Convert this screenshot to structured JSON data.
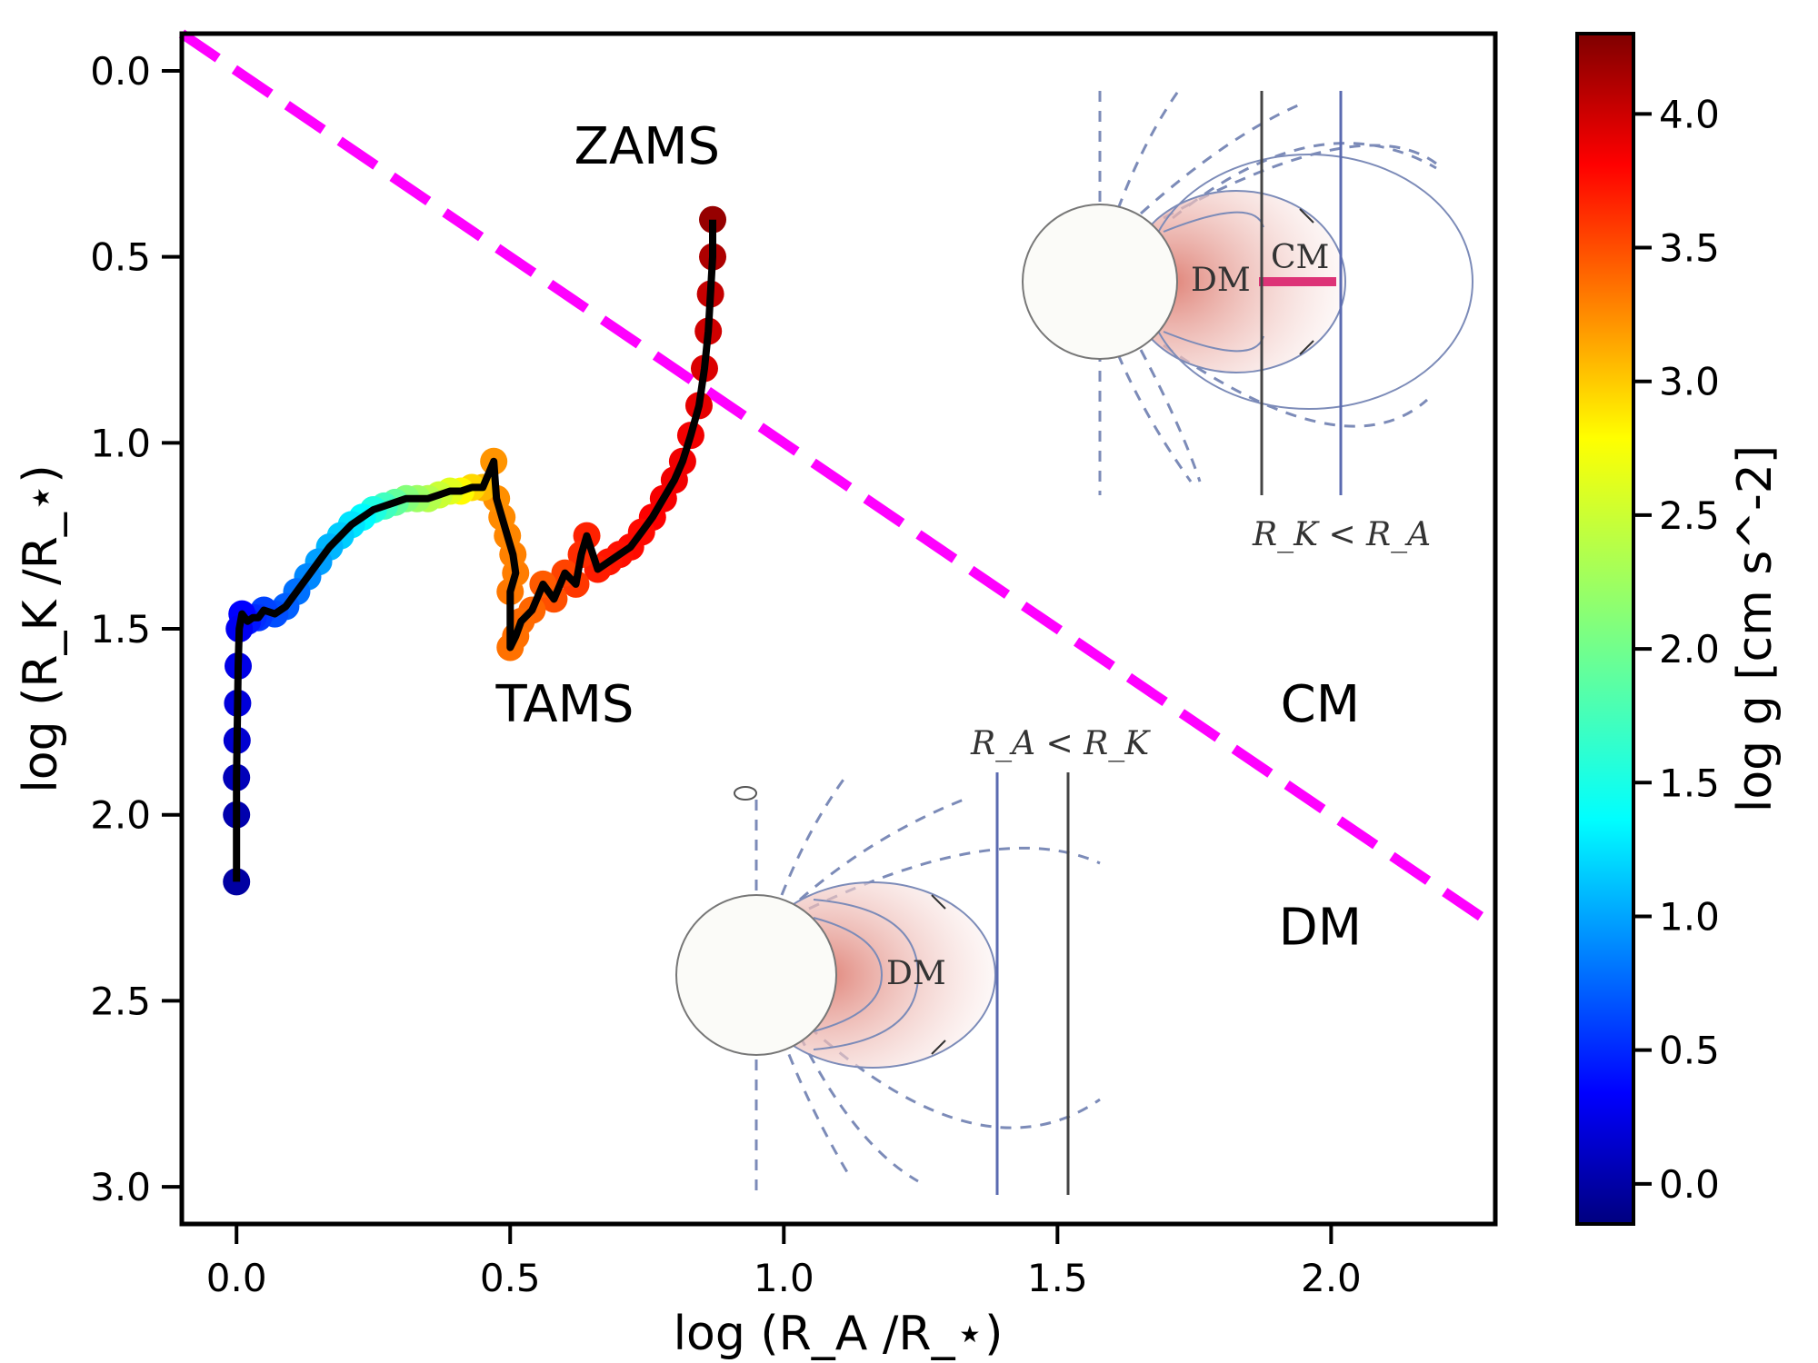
{
  "chart_data": {
    "type": "line",
    "xlabel": "log (R_A /R_⋆)",
    "ylabel": "log (R_K /R_⋆)",
    "colorbar_label": "log g [cm s^-2]",
    "xlim": [
      -0.1,
      2.3
    ],
    "ylim": [
      3.1,
      -0.1
    ],
    "x_ticks": [
      "0.0",
      "0.5",
      "1.0",
      "1.5",
      "2.0"
    ],
    "y_ticks": [
      "0.0",
      "0.5",
      "1.0",
      "1.5",
      "2.0",
      "2.5",
      "3.0"
    ],
    "colorbar": {
      "range": [
        -0.15,
        4.3
      ],
      "ticks": [
        "0.0",
        "0.5",
        "1.0",
        "1.5",
        "2.0",
        "2.5",
        "3.0",
        "3.5",
        "4.0"
      ]
    },
    "dividing_line": {
      "color": "#ff00ff",
      "style": "dashed",
      "x": [
        -0.1,
        2.3
      ],
      "y": [
        -0.1,
        2.3
      ]
    },
    "annotations": [
      {
        "text": "ZAMS",
        "x": 0.75,
        "y": 0.2
      },
      {
        "text": "TAMS",
        "x": 0.6,
        "y": 1.7
      },
      {
        "text": "CM",
        "x": 1.98,
        "y": 1.7
      },
      {
        "text": "DM",
        "x": 1.98,
        "y": 2.3
      }
    ],
    "track": {
      "x": [
        0.87,
        0.87,
        0.866,
        0.862,
        0.855,
        0.845,
        0.83,
        0.815,
        0.8,
        0.78,
        0.76,
        0.74,
        0.72,
        0.7,
        0.68,
        0.66,
        0.64,
        0.63,
        0.62,
        0.6,
        0.58,
        0.56,
        0.54,
        0.52,
        0.51,
        0.5,
        0.5,
        0.51,
        0.505,
        0.495,
        0.485,
        0.475,
        0.47,
        0.45,
        0.43,
        0.41,
        0.39,
        0.37,
        0.35,
        0.33,
        0.31,
        0.29,
        0.27,
        0.25,
        0.23,
        0.21,
        0.19,
        0.17,
        0.15,
        0.13,
        0.11,
        0.09,
        0.07,
        0.05,
        0.04,
        0.03,
        0.02,
        0.01,
        0.005,
        0.003,
        0.002,
        0.001,
        0.0,
        0.0,
        0.0
      ],
      "y": [
        0.4,
        0.5,
        0.6,
        0.7,
        0.8,
        0.9,
        0.98,
        1.05,
        1.1,
        1.15,
        1.2,
        1.24,
        1.28,
        1.3,
        1.32,
        1.34,
        1.25,
        1.3,
        1.38,
        1.35,
        1.42,
        1.38,
        1.45,
        1.48,
        1.52,
        1.55,
        1.4,
        1.35,
        1.3,
        1.25,
        1.2,
        1.15,
        1.05,
        1.12,
        1.12,
        1.13,
        1.13,
        1.14,
        1.15,
        1.15,
        1.15,
        1.16,
        1.17,
        1.18,
        1.2,
        1.22,
        1.25,
        1.28,
        1.32,
        1.36,
        1.4,
        1.44,
        1.46,
        1.45,
        1.47,
        1.47,
        1.48,
        1.46,
        1.5,
        1.6,
        1.7,
        1.8,
        1.9,
        2.0,
        2.18
      ],
      "log_g": [
        4.2,
        4.1,
        4.0,
        3.95,
        3.9,
        3.85,
        3.8,
        3.8,
        3.8,
        3.78,
        3.75,
        3.7,
        3.7,
        3.68,
        3.65,
        3.62,
        3.6,
        3.55,
        3.5,
        3.45,
        3.4,
        3.35,
        3.3,
        3.28,
        3.26,
        3.25,
        3.22,
        3.2,
        3.18,
        3.16,
        3.14,
        3.12,
        3.1,
        2.95,
        2.8,
        2.65,
        2.5,
        2.4,
        2.3,
        2.2,
        2.1,
        1.95,
        1.8,
        1.65,
        1.5,
        1.4,
        1.3,
        1.2,
        1.1,
        1.0,
        0.9,
        0.82,
        0.75,
        0.7,
        0.65,
        0.6,
        0.5,
        0.4,
        0.35,
        0.3,
        0.25,
        0.2,
        0.1,
        0.05,
        0.0
      ]
    },
    "insets": [
      {
        "name": "cm-inset",
        "labels": [
          "DM",
          "CM",
          "R_K < R_A"
        ]
      },
      {
        "name": "dm-inset",
        "labels": [
          "DM",
          "R_A < R_K"
        ]
      }
    ]
  }
}
